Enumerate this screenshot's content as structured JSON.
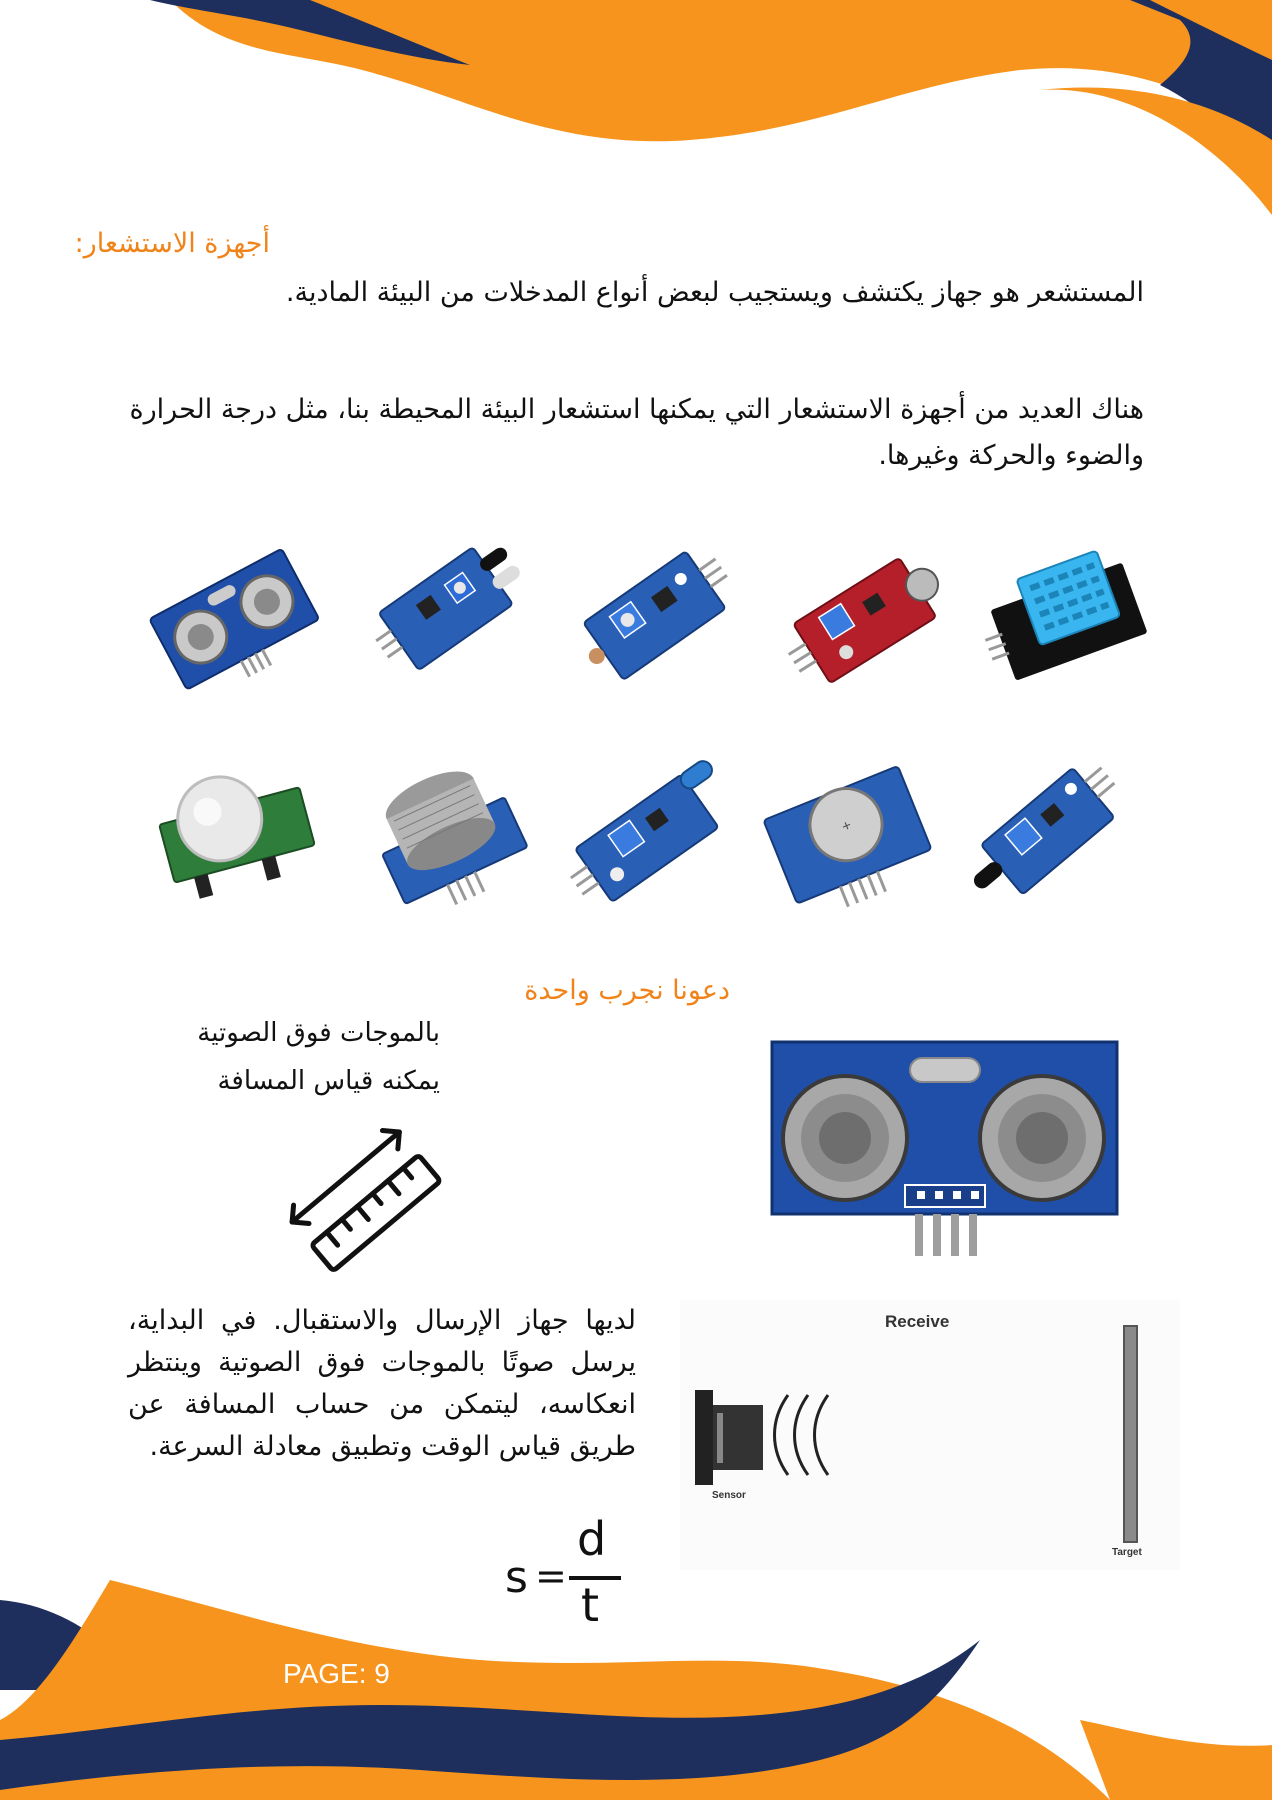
{
  "section": {
    "title": "أجهزة الاستشعار:",
    "definition": "المستشعر هو جهاز يكتشف ويستجيب لبعض أنواع المدخلات من البيئة المادية.",
    "examples_paragraph": "هناك العديد من أجهزة الاستشعار التي يمكنها استشعار البيئة المحيطة بنا، مثل درجة الحرارة والضوء والحركة وغيرها."
  },
  "sensors_gallery": {
    "row1": [
      "ultrasonic-sensor",
      "ir-obstacle-sensor",
      "light-sensor",
      "sound-sensor",
      "temperature-humidity-sensor"
    ],
    "row2": [
      "pir-motion-sensor",
      "gas-sensor",
      "vibration-sensor",
      "rtc-clock-module",
      "flame-sensor"
    ]
  },
  "try_one": {
    "title": "دعونا نجرب واحدة",
    "line1": "بالموجات فوق الصوتية",
    "line2": "يمكنه قياس المسافة",
    "description": "لديها جهاز الإرسال والاستقبال. في البداية، يرسل صوتًا بالموجات فوق الصوتية وينتظر انعكاسه، ليتمكن من حساب المسافة عن طريق قياس الوقت وتطبيق معادلة السرعة."
  },
  "diagram": {
    "receive_label": "Receive",
    "sensor_label": "Sensor",
    "target_label": "Target"
  },
  "formula": {
    "lhs": "s",
    "equals": "=",
    "numerator": "d",
    "denominator": "t"
  },
  "footer": {
    "page_label": "PAGE: 9"
  },
  "colors": {
    "orange": "#f7941d",
    "navy": "#1e2f5e",
    "board_blue": "#1f4fa8"
  }
}
